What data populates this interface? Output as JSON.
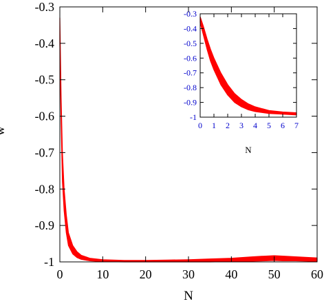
{
  "chart_data": [
    {
      "id": "main",
      "type": "area",
      "title": "",
      "xlabel": "N",
      "ylabel": "w",
      "xlim": [
        0,
        60
      ],
      "ylim": [
        -1,
        -0.3
      ],
      "xticks": [
        0,
        10,
        20,
        30,
        40,
        50,
        60
      ],
      "yticks": [
        -1,
        -0.9,
        -0.8,
        -0.7,
        -0.6,
        -0.5,
        -0.4,
        -0.3
      ],
      "xtick_labels": [
        "0",
        "10",
        "20",
        "30",
        "40",
        "50",
        "60"
      ],
      "ytick_labels": [
        "-1",
        "-0.9",
        "-0.8",
        "-0.7",
        "-0.6",
        "-0.5",
        "-0.4",
        "-0.3"
      ],
      "grid": false,
      "legend": "none",
      "series_color": "#ff0000",
      "tick_label_color": "#000000",
      "series": [
        {
          "x": [
            0,
            0.3,
            0.6,
            1,
            1.5,
            2,
            3,
            4,
            5,
            7,
            10,
            15,
            20,
            25,
            30,
            35,
            40,
            45,
            48,
            50,
            52,
            55,
            58,
            60
          ],
          "upper": [
            -0.33,
            -0.55,
            -0.7,
            -0.8,
            -0.87,
            -0.92,
            -0.955,
            -0.972,
            -0.982,
            -0.99,
            -0.994,
            -0.996,
            -0.996,
            -0.995,
            -0.994,
            -0.992,
            -0.99,
            -0.986,
            -0.984,
            -0.983,
            -0.984,
            -0.986,
            -0.988,
            -0.989
          ],
          "lower": [
            -0.4,
            -0.62,
            -0.78,
            -0.86,
            -0.92,
            -0.955,
            -0.978,
            -0.988,
            -0.993,
            -0.997,
            -0.999,
            -1.0,
            -1.0,
            -1.0,
            -1.0,
            -1.0,
            -0.999,
            -0.998,
            -0.997,
            -0.996,
            -0.997,
            -0.997,
            -0.998,
            -0.998
          ]
        }
      ]
    },
    {
      "id": "inset",
      "type": "area",
      "title": "",
      "xlabel": "N",
      "ylabel": "",
      "xlim": [
        0,
        7
      ],
      "ylim": [
        -1,
        -0.3
      ],
      "xticks": [
        0,
        1,
        2,
        3,
        4,
        5,
        6,
        7
      ],
      "yticks": [
        -1,
        -0.9,
        -0.8,
        -0.7,
        -0.6,
        -0.5,
        -0.4,
        -0.3
      ],
      "xtick_labels": [
        "0",
        "1",
        "2",
        "3",
        "4",
        "5",
        "6",
        "7"
      ],
      "ytick_labels": [
        "-1",
        "-0.9",
        "-0.8",
        "-0.7",
        "-0.6",
        "-0.5",
        "-0.4",
        "-0.3"
      ],
      "grid": false,
      "legend": "none",
      "series_color": "#ff0000",
      "tick_label_color": "#0000cc",
      "series": [
        {
          "x": [
            0,
            0.25,
            0.5,
            0.75,
            1,
            1.5,
            2,
            2.5,
            3,
            3.5,
            4,
            5,
            6,
            7
          ],
          "upper": [
            -0.32,
            -0.39,
            -0.47,
            -0.54,
            -0.6,
            -0.7,
            -0.78,
            -0.84,
            -0.88,
            -0.91,
            -0.93,
            -0.955,
            -0.965,
            -0.97
          ],
          "lower": [
            -0.36,
            -0.45,
            -0.54,
            -0.62,
            -0.68,
            -0.78,
            -0.85,
            -0.9,
            -0.93,
            -0.95,
            -0.962,
            -0.975,
            -0.98,
            -0.985
          ]
        }
      ]
    }
  ]
}
